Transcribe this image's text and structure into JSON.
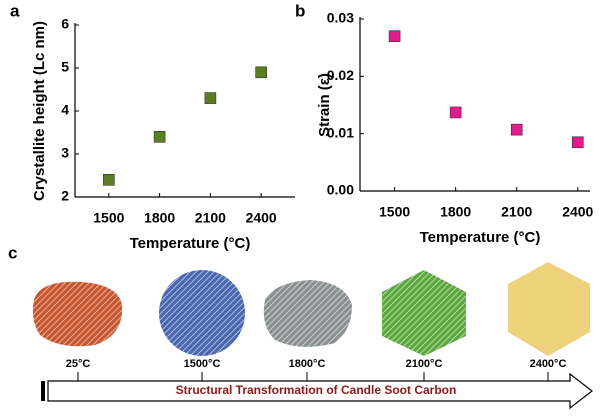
{
  "chart_data": [
    {
      "type": "scatter",
      "panel_label": "a",
      "y_label": "Crystallite height (Lc nm)",
      "x_label": "Temperature (°C)",
      "x": [
        1500,
        1800,
        2100,
        2400
      ],
      "values": [
        2.4,
        3.4,
        4.3,
        4.9
      ],
      "color": "#5b7f1f",
      "xlim": [
        1300,
        2600
      ],
      "xticks": [
        1500,
        1800,
        2100,
        2400
      ],
      "ylim": [
        2,
        6
      ],
      "yticks": [
        2,
        3,
        4,
        5,
        6
      ]
    },
    {
      "type": "scatter",
      "panel_label": "b",
      "y_label": "Strain (ε)",
      "x_label": "Temperature (°C)",
      "x": [
        1500,
        1800,
        2100,
        2400
      ],
      "values": [
        0.027,
        0.0137,
        0.0107,
        0.0085
      ],
      "color": "#e8198c",
      "xlim": [
        1330,
        2460
      ],
      "xticks": [
        1500,
        1800,
        2100,
        2400
      ],
      "ylim": [
        0,
        0.03
      ],
      "yticks": [
        {
          "value": 0,
          "label": "0.00"
        },
        0.01,
        0.02,
        0.03
      ]
    }
  ],
  "diagram": {
    "panel_label": "c",
    "stages": [
      {
        "label": "25°C"
      },
      {
        "label": "1500°C"
      },
      {
        "label": "1800°C"
      },
      {
        "label": "2100°C"
      },
      {
        "label": "2400°C"
      }
    ],
    "caption": "Structural Transformation of Candle Soot Carbon"
  }
}
